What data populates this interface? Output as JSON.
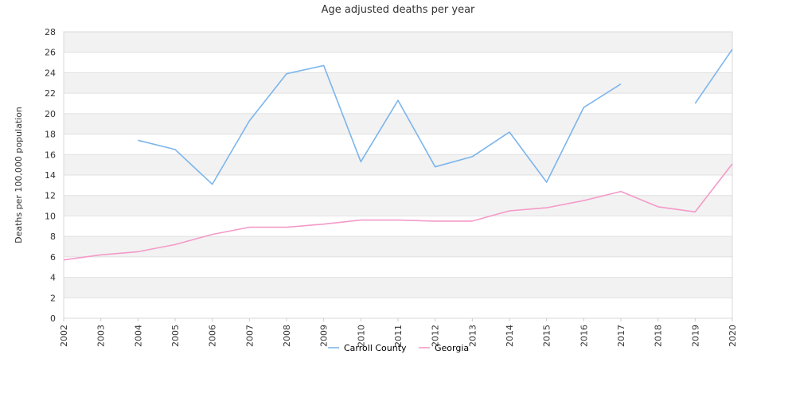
{
  "chart_data": {
    "type": "line",
    "title": "Age adjusted deaths per year",
    "xlabel": "",
    "ylabel": "Deaths per 100,000 population",
    "ylim": [
      0,
      28
    ],
    "yticks": [
      0,
      2,
      4,
      6,
      8,
      10,
      12,
      14,
      16,
      18,
      20,
      22,
      24,
      26,
      28
    ],
    "grid": true,
    "legend_position": "bottom",
    "x": [
      "2002",
      "2003",
      "2004",
      "2005",
      "2006",
      "2007",
      "2008",
      "2009",
      "2010",
      "2011",
      "2012",
      "2013",
      "2014",
      "2015",
      "2016",
      "2017",
      "2018",
      "2019",
      "2020"
    ],
    "series": [
      {
        "name": "Carroll County",
        "color": "#7cb5ec",
        "values": [
          null,
          null,
          17.4,
          16.5,
          13.1,
          19.3,
          23.9,
          24.7,
          15.3,
          21.3,
          14.8,
          15.8,
          18.2,
          13.3,
          20.6,
          22.9,
          null,
          21.0,
          26.3
        ]
      },
      {
        "name": "Georgia",
        "color": "#f49ac8",
        "values": [
          5.7,
          6.2,
          6.5,
          7.2,
          8.2,
          8.9,
          8.9,
          9.2,
          9.6,
          9.6,
          9.5,
          9.5,
          10.5,
          10.8,
          11.5,
          12.4,
          10.9,
          10.4,
          15.1
        ]
      }
    ]
  }
}
